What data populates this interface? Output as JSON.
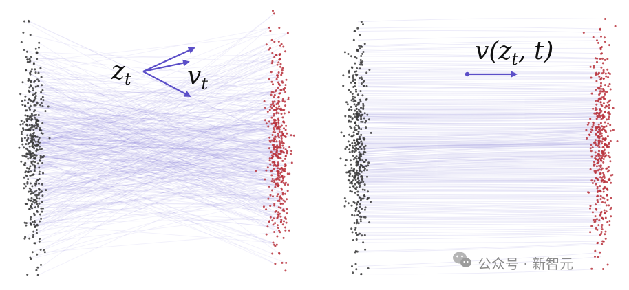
{
  "left_panel": {
    "label_position": "z",
    "label_position_sub": "t",
    "label_velocity": "v",
    "label_velocity_sub": "t",
    "source_color": "#3a3a3a",
    "target_color": "#b8323c",
    "path_color": "#6b5fd0",
    "arrow_color": "#5b4ec8"
  },
  "right_panel": {
    "field_label": "v(z",
    "field_label_sub": "t",
    "field_label_tail": ", t)",
    "source_color": "#3a3a3a",
    "target_color": "#b8323c",
    "path_color": "#6b5fd0",
    "arrow_color": "#5b4ec8"
  },
  "watermark": {
    "text": "公众号 · 新智元",
    "icon": "wechat-icon"
  }
}
